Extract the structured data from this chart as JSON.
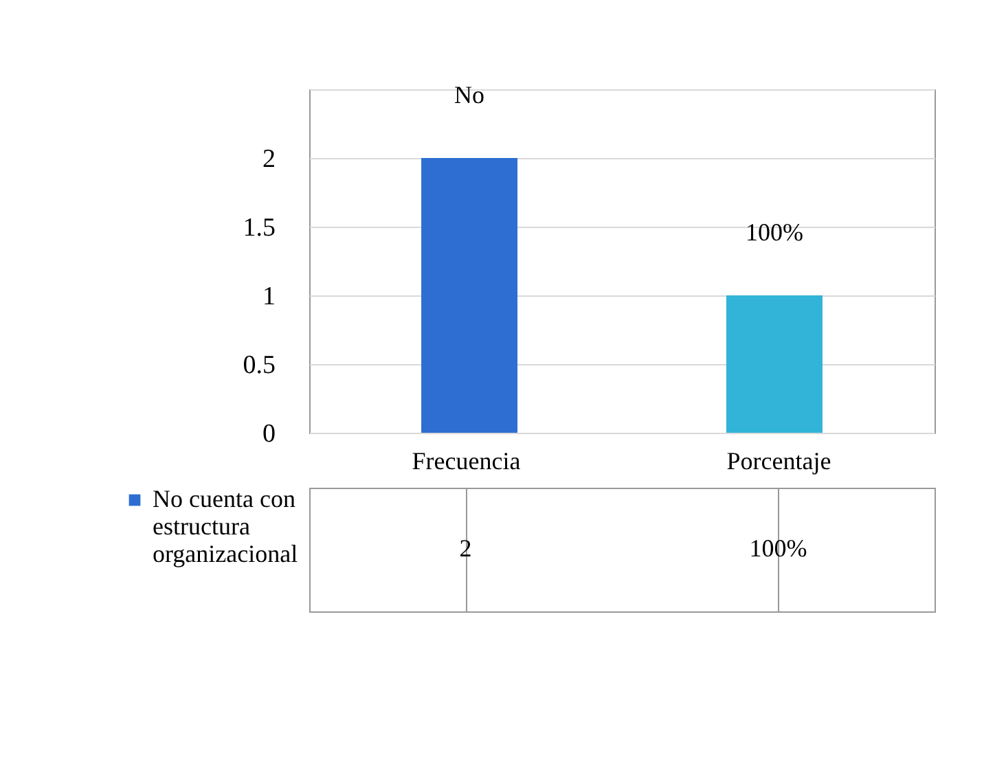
{
  "chart_data": {
    "type": "bar",
    "categories": [
      "Frecuencia",
      "Porcentaje"
    ],
    "series": [
      {
        "name": "No cuenta con estructura organizacional",
        "color": "#2e6ed2",
        "colors": [
          "#2e6ed2",
          "#31b4d8"
        ],
        "values": [
          2,
          1
        ],
        "value_labels": [
          "2",
          "100%"
        ]
      }
    ],
    "annotations": [
      {
        "text": "No",
        "x": "Frecuencia",
        "y": 2
      },
      {
        "text": "100%",
        "x": "Porcentaje",
        "y": 1
      }
    ],
    "ylim": [
      0,
      2.5
    ],
    "yticks": [
      0,
      0.5,
      1,
      1.5,
      2,
      {
        "value": 2.5,
        "label": null
      }
    ],
    "grid": "y",
    "legend": "bottom"
  }
}
